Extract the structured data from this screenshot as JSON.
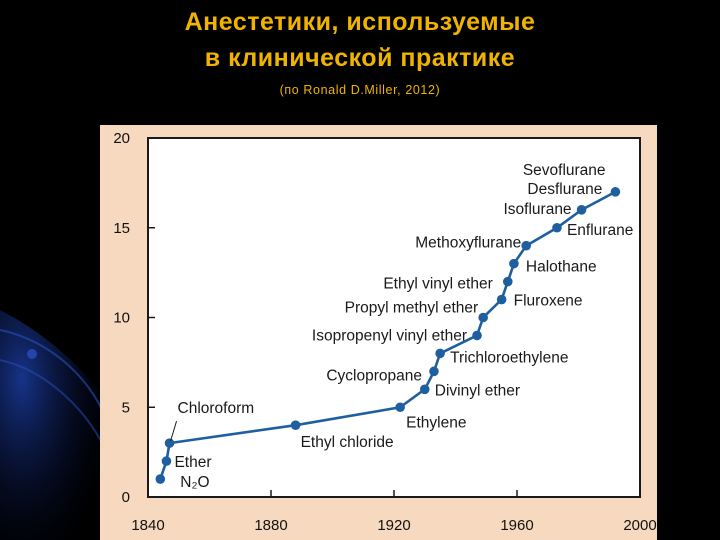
{
  "slide": {
    "title_line1": "Анестетики, используемые",
    "title_line2": "в клинической практике",
    "subtitle": "(по Ronald D.Miller, 2012)"
  },
  "colors": {
    "title": "#f0b400",
    "panel": "#f6d9bf",
    "series": "#1f5f9f",
    "axis": "#1a1a1a"
  },
  "chart_data": {
    "type": "line",
    "title": "",
    "xlabel": "",
    "ylabel": "",
    "xlim": [
      1840,
      2000
    ],
    "ylim": [
      0,
      20
    ],
    "x_ticks": [
      1840,
      1880,
      1920,
      1960,
      2000
    ],
    "y_ticks": [
      0,
      5,
      10,
      15,
      20
    ],
    "grid": false,
    "legend": "none",
    "series": [
      {
        "points": [
          {
            "x": 1844,
            "y": 1,
            "label": "N₂O"
          },
          {
            "x": 1846,
            "y": 2,
            "label": "Ether"
          },
          {
            "x": 1847,
            "y": 3,
            "label": "Chloroform"
          },
          {
            "x": 1888,
            "y": 4,
            "label": "Ethyl chloride"
          },
          {
            "x": 1922,
            "y": 5,
            "label": "Ethylene"
          },
          {
            "x": 1930,
            "y": 6,
            "label": "Divinyl ether"
          },
          {
            "x": 1933,
            "y": 7,
            "label": "Cyclopropane"
          },
          {
            "x": 1935,
            "y": 8,
            "label": "Trichloroethylene"
          },
          {
            "x": 1947,
            "y": 9,
            "label": "Isopropenyl vinyl ether"
          },
          {
            "x": 1949,
            "y": 10,
            "label": "Propyl methyl ether"
          },
          {
            "x": 1955,
            "y": 11,
            "label": "Fluroxene"
          },
          {
            "x": 1957,
            "y": 12,
            "label": "Ethyl vinyl ether"
          },
          {
            "x": 1959,
            "y": 13,
            "label": "Halothane"
          },
          {
            "x": 1963,
            "y": 14,
            "label": "Methoxyflurane"
          },
          {
            "x": 1973,
            "y": 15,
            "label": "Enflurane"
          },
          {
            "x": 1981,
            "y": 16,
            "label": "Isoflurane"
          },
          {
            "x": 1992,
            "y": 17,
            "label": "Desflurane"
          },
          {
            "x": 1994,
            "y": 17,
            "label": "Sevoflurane"
          }
        ]
      }
    ]
  }
}
